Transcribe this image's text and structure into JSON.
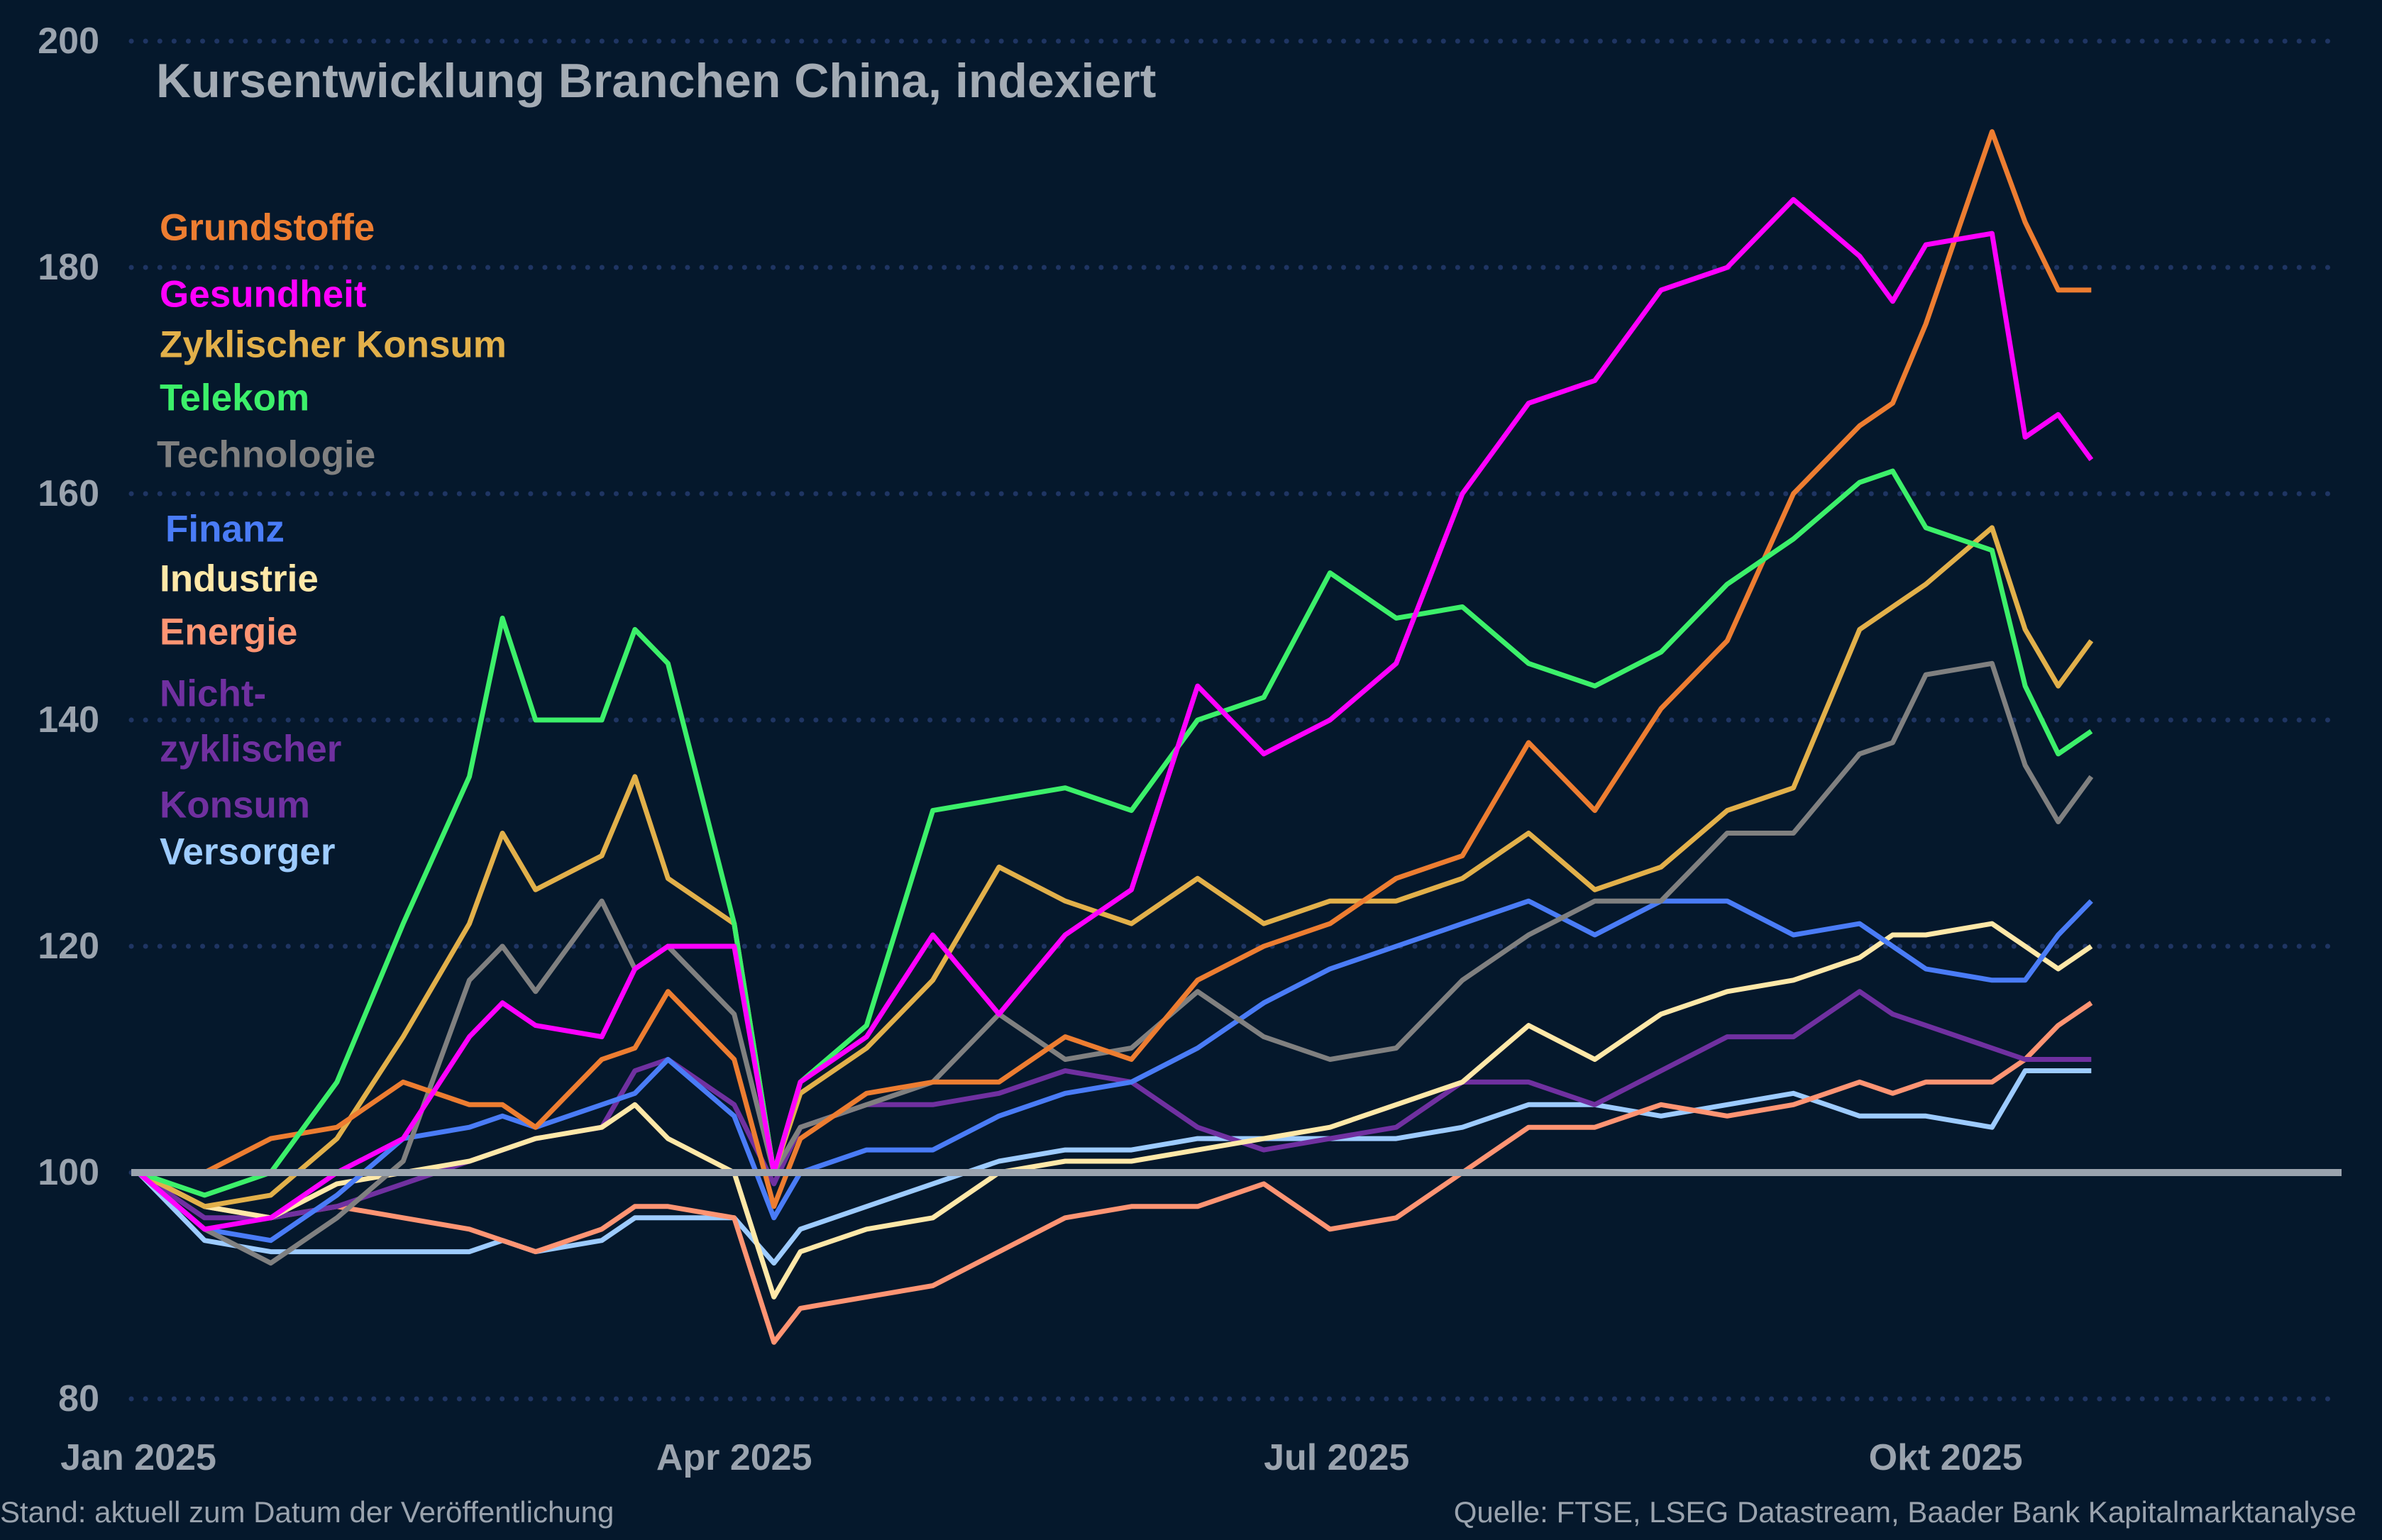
{
  "chart_data": {
    "type": "line",
    "title": "Kursentwicklung Branchen China, indexiert",
    "xlabel": "",
    "ylabel": "",
    "ylim": [
      80,
      200
    ],
    "yticks": [
      "80",
      "100",
      "120",
      "140",
      "160",
      "180",
      "200"
    ],
    "xticks": [
      {
        "date": "2025-01-01",
        "label": "Jan 2025"
      },
      {
        "date": "2025-04-01",
        "label": "Apr 2025"
      },
      {
        "date": "2025-07-01",
        "label": "Jul 2025"
      },
      {
        "date": "2025-10-01",
        "label": "Okt 2025"
      }
    ],
    "grid": "horizontal dotted",
    "legend_placement": "left",
    "reference_line": 100,
    "reference_color": "#9aa3ae",
    "grid_color": "#1f3563",
    "x": [
      "2025-01-01",
      "2025-01-11",
      "2025-01-21",
      "2025-01-31",
      "2025-02-10",
      "2025-02-20",
      "2025-02-25",
      "2025-03-02",
      "2025-03-12",
      "2025-03-17",
      "2025-03-22",
      "2025-04-01",
      "2025-04-07",
      "2025-04-11",
      "2025-04-21",
      "2025-05-01",
      "2025-05-11",
      "2025-05-21",
      "2025-05-31",
      "2025-06-10",
      "2025-06-20",
      "2025-06-30",
      "2025-07-10",
      "2025-07-20",
      "2025-07-30",
      "2025-08-09",
      "2025-08-19",
      "2025-08-29",
      "2025-09-08",
      "2025-09-18",
      "2025-09-23",
      "2025-09-28",
      "2025-10-08",
      "2025-10-13",
      "2025-10-18",
      "2025-10-23"
    ],
    "series": [
      {
        "name": "Versorger",
        "color": "#9dcbff",
        "values": [
          100,
          94,
          93,
          93,
          93,
          93,
          94,
          93,
          94,
          96,
          96,
          96,
          92,
          95,
          97,
          99,
          101,
          102,
          102,
          103,
          103,
          103,
          103,
          104,
          106,
          106,
          105,
          106,
          107,
          105,
          105,
          105,
          104,
          109,
          109,
          109
        ]
      },
      {
        "name": "Energie",
        "color": "#ff9473",
        "values": [
          100,
          97,
          96,
          97,
          96,
          95,
          94,
          93,
          95,
          97,
          97,
          96,
          85,
          88,
          89,
          90,
          93,
          96,
          97,
          97,
          99,
          95,
          96,
          100,
          104,
          104,
          106,
          105,
          106,
          108,
          107,
          108,
          108,
          110,
          113,
          115
        ]
      },
      {
        "name": "Nicht-zyklischer Konsum",
        "color": "#7030a0",
        "values": [
          100,
          96,
          96,
          97,
          99,
          101,
          102,
          103,
          104,
          109,
          110,
          106,
          99,
          104,
          106,
          106,
          107,
          109,
          108,
          104,
          102,
          103,
          104,
          108,
          108,
          106,
          109,
          112,
          112,
          116,
          114,
          113,
          111,
          110,
          110,
          110
        ]
      },
      {
        "name": "Industrie",
        "color": "#ffe8a8",
        "values": [
          100,
          97,
          96,
          99,
          100,
          101,
          102,
          103,
          104,
          106,
          103,
          100,
          89,
          93,
          95,
          96,
          100,
          101,
          101,
          102,
          103,
          104,
          106,
          108,
          113,
          110,
          114,
          116,
          117,
          119,
          121,
          121,
          122,
          120,
          118,
          120
        ]
      },
      {
        "name": "Finanz",
        "color": "#4a7cf7",
        "values": [
          100,
          95,
          94,
          98,
          103,
          104,
          105,
          104,
          106,
          107,
          110,
          105,
          96,
          100,
          102,
          102,
          105,
          107,
          108,
          111,
          115,
          118,
          120,
          122,
          124,
          121,
          124,
          124,
          121,
          122,
          120,
          118,
          117,
          117,
          121,
          124
        ]
      },
      {
        "name": "Technologie",
        "color": "#808080",
        "values": [
          100,
          95,
          92,
          96,
          101,
          117,
          120,
          116,
          124,
          118,
          120,
          114,
          100,
          104,
          106,
          108,
          114,
          110,
          111,
          116,
          112,
          110,
          111,
          117,
          121,
          124,
          124,
          130,
          130,
          137,
          138,
          144,
          145,
          136,
          131,
          135
        ]
      },
      {
        "name": "Zyklischer Konsum",
        "color": "#e2b04a",
        "values": [
          100,
          97,
          98,
          103,
          112,
          122,
          130,
          125,
          128,
          135,
          126,
          122,
          100,
          107,
          111,
          117,
          127,
          124,
          122,
          126,
          122,
          124,
          124,
          126,
          130,
          125,
          127,
          132,
          134,
          148,
          150,
          152,
          157,
          148,
          143,
          147
        ]
      },
      {
        "name": "Grundstoffe",
        "color": "#ed7d31",
        "values": [
          100,
          100,
          103,
          104,
          108,
          106,
          106,
          104,
          110,
          111,
          116,
          110,
          97,
          103,
          107,
          108,
          108,
          112,
          110,
          117,
          120,
          122,
          126,
          128,
          138,
          132,
          141,
          147,
          160,
          166,
          168,
          175,
          192,
          184,
          178,
          178
        ]
      },
      {
        "name": "Telekom",
        "color": "#3cf06a",
        "values": [
          100,
          98,
          100,
          108,
          122,
          135,
          149,
          140,
          140,
          148,
          145,
          122,
          100,
          108,
          113,
          132,
          133,
          134,
          132,
          140,
          142,
          153,
          149,
          150,
          145,
          143,
          146,
          152,
          156,
          161,
          162,
          157,
          155,
          143,
          137,
          139
        ]
      },
      {
        "name": "Gesundheit",
        "color": "#ff00ff",
        "values": [
          100,
          95,
          96,
          100,
          103,
          112,
          115,
          113,
          112,
          118,
          120,
          120,
          100,
          108,
          112,
          121,
          114,
          121,
          125,
          143,
          137,
          140,
          145,
          160,
          168,
          170,
          178,
          180,
          186,
          181,
          177,
          182,
          183,
          165,
          167,
          163
        ]
      }
    ]
  },
  "legend": [
    {
      "label": "Grundstoffe",
      "color": "#ed7d31"
    },
    {
      "label": "Gesundheit",
      "color": "#ff00ff"
    },
    {
      "label": "Zyklischer Konsum",
      "color": "#e2b04a"
    },
    {
      "label": "Telekom",
      "color": "#3cf06a"
    },
    {
      "label": "Technologie",
      "color": "#808080"
    },
    {
      "label": "Finanz",
      "color": "#4a7cf7"
    },
    {
      "label": "Industrie",
      "color": "#ffe8a8"
    },
    {
      "label": "Energie",
      "color": "#ff9473"
    },
    {
      "label": "Nicht-",
      "color": "#7030a0"
    },
    {
      "label": "zyklischer",
      "color": "#7030a0"
    },
    {
      "label": "Konsum",
      "color": "#7030a0"
    },
    {
      "label": "Versorger",
      "color": "#9dcbff"
    }
  ],
  "footer": {
    "left": "Stand: aktuell zum Datum der Veröffentlichung",
    "right": "Quelle: FTSE, LSEG Datastream, Baader Bank Kapitalmarktanalyse"
  },
  "colors": {
    "background": "#05182c",
    "text": "#9aa3ae"
  }
}
